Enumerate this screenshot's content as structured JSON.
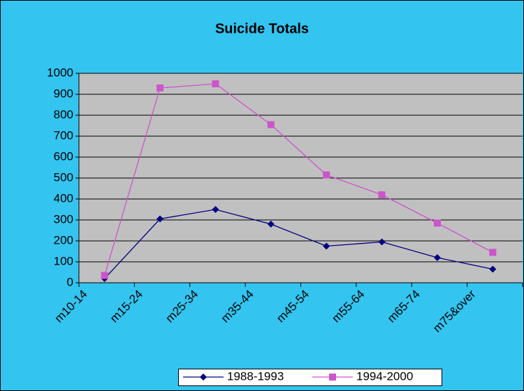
{
  "chart_data": {
    "type": "line",
    "title": "Suicide Totals",
    "categories": [
      "m10-14",
      "m15-24",
      "m25-34",
      "m35-44",
      "m45-54",
      "m55-64",
      "m65-74",
      "m75&over"
    ],
    "series": [
      {
        "name": "1988-1993",
        "color": "#000080",
        "marker": "diamond",
        "values": [
          20,
          305,
          350,
          280,
          175,
          195,
          120,
          65
        ]
      },
      {
        "name": "1994-2000",
        "color": "#cc55cc",
        "marker": "square",
        "values": [
          35,
          930,
          950,
          755,
          515,
          420,
          285,
          145
        ]
      }
    ],
    "ylim": [
      0,
      1000
    ],
    "yticks": [
      0,
      100,
      200,
      300,
      400,
      500,
      600,
      700,
      800,
      900,
      1000
    ],
    "grid": true,
    "legend": "bottom"
  }
}
